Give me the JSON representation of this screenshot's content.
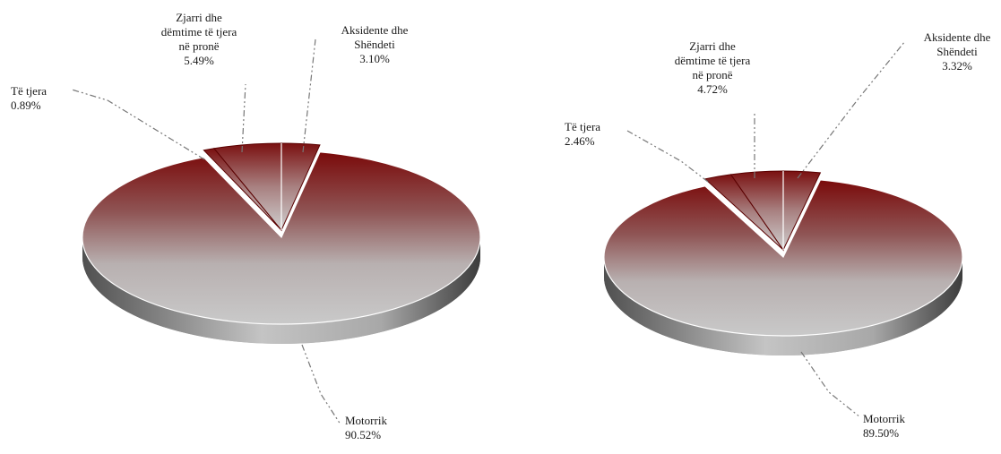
{
  "chart_data": [
    {
      "type": "pie",
      "title": "",
      "slices": [
        {
          "label": "Motorrik",
          "value": 90.52,
          "value_label": "90.52%"
        },
        {
          "label": "Të tjera",
          "value": 0.89,
          "value_label": "0.89%"
        },
        {
          "label": "Zjarri dhe dëmtime të tjera në pronë",
          "value": 5.49,
          "value_label": "5.49%"
        },
        {
          "label": "Aksidente dhe Shëndeti",
          "value": 3.1,
          "value_label": "3.10%"
        }
      ]
    },
    {
      "type": "pie",
      "title": "",
      "slices": [
        {
          "label": "Motorrik",
          "value": 89.5,
          "value_label": "89.50%"
        },
        {
          "label": "Të tjera",
          "value": 2.46,
          "value_label": "2.46%"
        },
        {
          "label": "Zjarri dhe dëmtime të tjera në pronë",
          "value": 4.72,
          "value_label": "4.72%"
        },
        {
          "label": "Aksidente dhe Shëndeti",
          "value": 3.32,
          "value_label": "3.32%"
        }
      ]
    }
  ],
  "label_lines": [
    {
      "Motorrik": [
        "Motorrik",
        "90.52%"
      ],
      "Të tjera": [
        "Të tjera",
        "0.89%"
      ],
      "Zjarri dhe dëmtime të tjera në pronë": [
        "Zjarri dhe",
        "dëmtime të tjera",
        "në pronë",
        "5.49%"
      ],
      "Aksidente dhe Shëndeti": [
        "Aksidente dhe",
        "Shëndeti",
        "3.10%"
      ]
    },
    {
      "Motorrik": [
        "Motorrik",
        "89.50%"
      ],
      "Të tjera": [
        "Të tjera",
        "2.46%"
      ],
      "Zjarri dhe dëmtime të tjera në pronë": [
        "Zjarri dhe",
        "dëmtime të tjera",
        "në pronë",
        "4.72%"
      ],
      "Aksidente dhe Shëndeti": [
        "Aksidente dhe",
        "Shëndeti",
        "3.32%"
      ]
    }
  ],
  "colors": {
    "slice_dark": "#7a0a0a",
    "slice_light": "#c8c8c8",
    "side_dark": "#4a4a4a",
    "side_light": "#bdbdbd",
    "leader": "#777777",
    "edge": "#ffffff"
  }
}
